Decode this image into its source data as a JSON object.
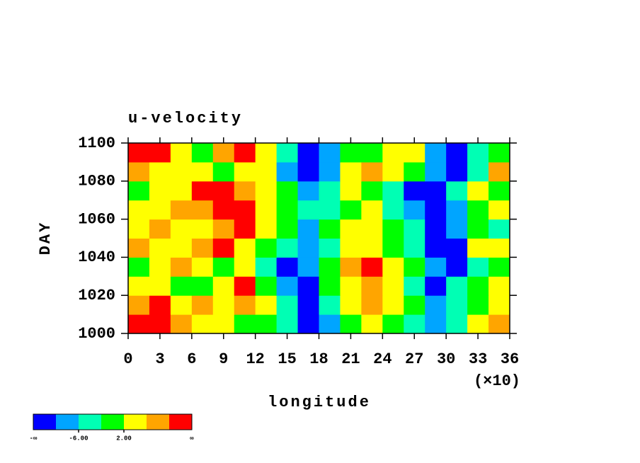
{
  "chart_data": {
    "type": "heatmap",
    "title": "u-velocity",
    "xlabel": "longitude",
    "ylabel": "DAY",
    "x_multiplier": "(×10)",
    "xlim": [
      0,
      36
    ],
    "xticks": [
      0,
      3,
      6,
      9,
      12,
      15,
      18,
      21,
      24,
      27,
      30,
      33,
      36
    ],
    "ylim": [
      1000,
      1100
    ],
    "yticks": [
      1000,
      1020,
      1040,
      1060,
      1080,
      1100
    ],
    "x": [
      1,
      3,
      5,
      7,
      9,
      11,
      13,
      15,
      17,
      19,
      21,
      23,
      25,
      27,
      29,
      31,
      33,
      35
    ],
    "y": [
      1005,
      1015,
      1025,
      1035,
      1045,
      1055,
      1065,
      1075,
      1085,
      1095
    ],
    "z": [
      [
        12,
        12,
        8,
        4,
        4,
        0,
        0,
        -4,
        -12,
        -8,
        0,
        4,
        0,
        -4,
        -8,
        -4,
        4,
        8
      ],
      [
        8,
        12,
        4,
        8,
        4,
        8,
        4,
        -4,
        -12,
        -4,
        4,
        8,
        4,
        0,
        -8,
        -4,
        0,
        4
      ],
      [
        4,
        4,
        0,
        0,
        4,
        12,
        0,
        -8,
        -12,
        0,
        4,
        8,
        4,
        -4,
        -12,
        -4,
        0,
        4
      ],
      [
        0,
        4,
        8,
        4,
        0,
        4,
        -4,
        -12,
        -8,
        0,
        8,
        12,
        4,
        0,
        -8,
        -12,
        -4,
        0
      ],
      [
        8,
        4,
        4,
        8,
        12,
        4,
        0,
        -4,
        -8,
        -4,
        4,
        4,
        0,
        -4,
        -12,
        -12,
        4,
        4
      ],
      [
        4,
        8,
        4,
        4,
        8,
        12,
        4,
        0,
        -8,
        0,
        4,
        4,
        0,
        -4,
        -12,
        -8,
        0,
        -4
      ],
      [
        4,
        4,
        8,
        8,
        12,
        12,
        4,
        0,
        -4,
        -4,
        0,
        4,
        -4,
        -8,
        -12,
        -8,
        0,
        4
      ],
      [
        0,
        4,
        4,
        12,
        12,
        8,
        4,
        0,
        -8,
        -4,
        4,
        0,
        -4,
        -12,
        -12,
        -4,
        4,
        0
      ],
      [
        8,
        4,
        4,
        4,
        0,
        4,
        4,
        -8,
        -12,
        -8,
        4,
        8,
        4,
        0,
        -8,
        -12,
        -4,
        8
      ],
      [
        12,
        12,
        4,
        0,
        8,
        12,
        4,
        -4,
        -12,
        -8,
        0,
        0,
        4,
        4,
        -8,
        -12,
        -4,
        0
      ]
    ],
    "levels": [
      -10,
      -6,
      -2,
      2,
      6,
      10
    ],
    "colors": [
      "#0000ff",
      "#00a5ff",
      "#00ffb4",
      "#00ff00",
      "#ffff00",
      "#ffa500",
      "#ff0000"
    ],
    "colorbar_ticks": [
      {
        "value": -6,
        "label": "-6.00"
      },
      {
        "value": 2,
        "label": "2.00"
      }
    ],
    "colorbar_ends": [
      "-∞",
      "∞"
    ]
  }
}
